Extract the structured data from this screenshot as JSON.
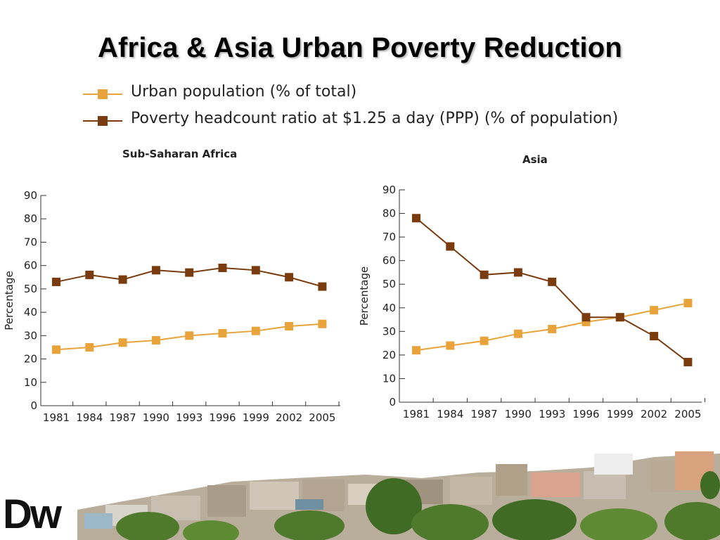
{
  "slide": {
    "title": "Africa & Asia Urban Poverty Reduction",
    "logo_text": "Dw"
  },
  "legend": [
    {
      "label": "Urban population (% of total)",
      "color": "#E8A33A",
      "marker": "square"
    },
    {
      "label": "Poverty headcount ratio at $1.25 a day (PPP) (% of population)",
      "color": "#7A3C0E",
      "marker": "square"
    }
  ],
  "chart_data": [
    {
      "type": "line",
      "title": "Sub-Saharan Africa",
      "xlabel": "",
      "ylabel": "Percentage",
      "categories": [
        "1981",
        "1984",
        "1987",
        "1990",
        "1993",
        "1996",
        "1999",
        "2002",
        "2005"
      ],
      "ylim": [
        0,
        90
      ],
      "yticks": [
        0,
        10,
        20,
        30,
        40,
        50,
        60,
        70,
        80,
        90
      ],
      "grid": false,
      "series": [
        {
          "name": "Urban population (% of total)",
          "color": "#E8A33A",
          "values": [
            24,
            25,
            27,
            28,
            30,
            31,
            32,
            34,
            35
          ]
        },
        {
          "name": "Poverty headcount ratio at $1.25 a day (PPP) (% of population)",
          "color": "#7A3C0E",
          "values": [
            53,
            56,
            54,
            58,
            57,
            59,
            58,
            55,
            51
          ]
        }
      ]
    },
    {
      "type": "line",
      "title": "Asia",
      "xlabel": "",
      "ylabel": "Percentage",
      "categories": [
        "1981",
        "1984",
        "1987",
        "1990",
        "1993",
        "1996",
        "1999",
        "2002",
        "2005"
      ],
      "ylim": [
        0,
        90
      ],
      "yticks": [
        0,
        10,
        20,
        30,
        40,
        50,
        60,
        70,
        80,
        90
      ],
      "grid": false,
      "series": [
        {
          "name": "Urban population (% of total)",
          "color": "#E8A33A",
          "values": [
            22,
            24,
            26,
            29,
            31,
            34,
            36,
            39,
            42
          ]
        },
        {
          "name": "Poverty headcount ratio at $1.25 a day (PPP) (% of population)",
          "color": "#7A3C0E",
          "values": [
            78,
            66,
            54,
            55,
            51,
            36,
            36,
            28,
            17
          ]
        }
      ]
    }
  ]
}
